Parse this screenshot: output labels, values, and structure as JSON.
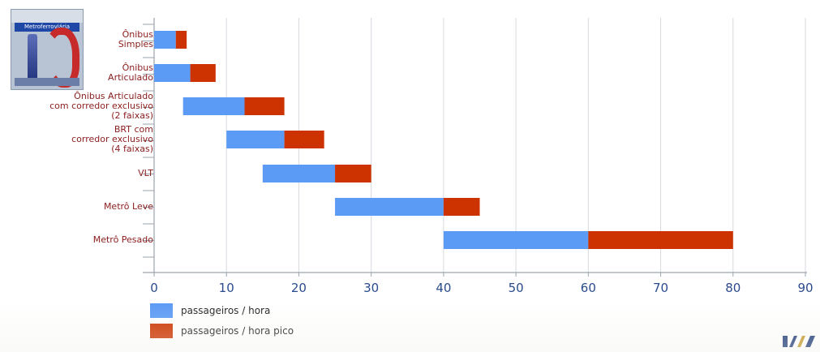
{
  "chart_data": {
    "type": "bar",
    "orientation": "horizontal",
    "stacked": true,
    "title": "",
    "xlabel": "",
    "ylabel": "",
    "xlim": [
      0,
      90
    ],
    "xticks": [
      0,
      10,
      20,
      30,
      40,
      50,
      60,
      70,
      80,
      90
    ],
    "grid": true,
    "legend_position": "bottom-left",
    "categories": [
      "Ônibus\nSimples",
      "Ônibus\nArticulado",
      "Ônibus Articulado\ncom corredor exclusivo\n(2 faixas)",
      "BRT com\ncorredor exclusivo\n(4 faixas)",
      "VLT",
      "Metrô Leve",
      "Metrô Pesado"
    ],
    "series": [
      {
        "name": "passageiros / hora",
        "color": "#5b9af5",
        "start": [
          0,
          0,
          4,
          10,
          15,
          25,
          40
        ],
        "end": [
          3,
          5,
          12.5,
          18,
          25,
          40,
          60
        ]
      },
      {
        "name": "passageiros / hora pico",
        "color": "#cc3300",
        "start": [
          3,
          5,
          12.5,
          18,
          25,
          40,
          60
        ],
        "end": [
          4.5,
          8.5,
          18,
          23.5,
          30,
          45,
          80
        ]
      }
    ]
  },
  "poster": {
    "title": "Metroferroviária"
  },
  "logo": {
    "icon": "company-logo-icon"
  },
  "colors": {
    "category_label": "#8b1d1d",
    "tick_label": "#2a4b8d",
    "grid": "#d6d9de",
    "axis": "#9aa3ad"
  }
}
